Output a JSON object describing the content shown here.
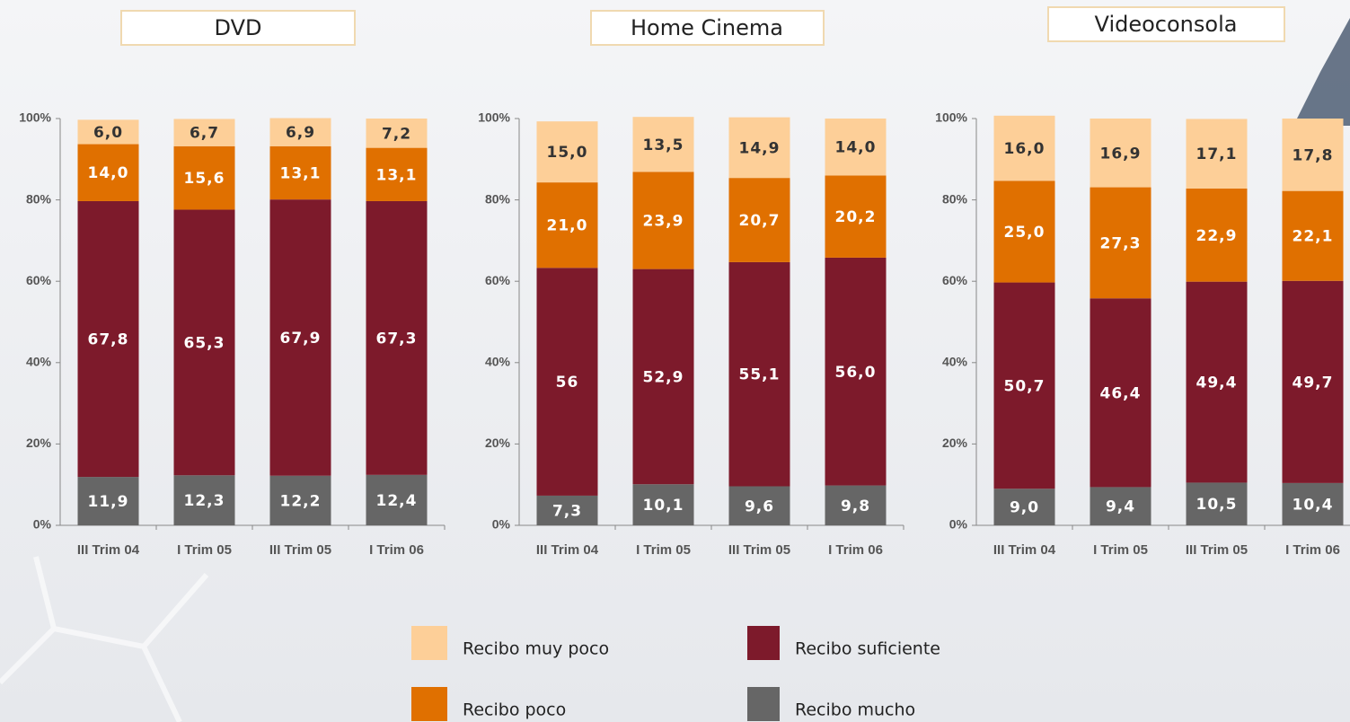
{
  "chart_data": [
    {
      "type": "stacked-bar",
      "title": "DVD",
      "categories": [
        "III Trim 04",
        "I Trim 05",
        "III Trim 05",
        "I Trim 06"
      ],
      "ylim": [
        0,
        100
      ],
      "yticks": [
        {
          "value": 0,
          "label": "0%"
        },
        {
          "value": 20,
          "label": "20%"
        },
        {
          "value": 40,
          "label": "40%"
        },
        {
          "value": 60,
          "label": "60%"
        },
        {
          "value": 80,
          "label": "80%"
        },
        {
          "value": 100,
          "label": "100%"
        }
      ],
      "series": [
        {
          "name": "Recibo mucho",
          "color": "#666666",
          "values": [
            11.9,
            12.3,
            12.2,
            12.4
          ],
          "value_labels": [
            "11,9",
            "12,3",
            "12,2",
            "12,4"
          ]
        },
        {
          "name": "Recibo suficiente",
          "color": "#7d1a2b",
          "values": [
            67.8,
            65.3,
            67.9,
            67.3
          ],
          "value_labels": [
            "67,8",
            "65,3",
            "67,9",
            "67,3"
          ]
        },
        {
          "name": "Recibo poco",
          "color": "#e07000",
          "values": [
            14.0,
            15.6,
            13.1,
            13.1
          ],
          "value_labels": [
            "14,0",
            "15,6",
            "13,1",
            "13,1"
          ]
        },
        {
          "name": "Recibo muy poco",
          "color": "#fdcf98",
          "values": [
            6.0,
            6.7,
            6.9,
            7.2
          ],
          "value_labels": [
            "6,0",
            "6,7",
            "6,9",
            "7,2"
          ]
        }
      ]
    },
    {
      "type": "stacked-bar",
      "title": "Home Cinema",
      "categories": [
        "III Trim 04",
        "I Trim 05",
        "III Trim 05",
        "I Trim 06"
      ],
      "ylim": [
        0,
        100
      ],
      "yticks": [
        {
          "value": 0,
          "label": "0%"
        },
        {
          "value": 20,
          "label": "20%"
        },
        {
          "value": 40,
          "label": "40%"
        },
        {
          "value": 60,
          "label": "60%"
        },
        {
          "value": 80,
          "label": "80%"
        },
        {
          "value": 100,
          "label": "100%"
        }
      ],
      "series": [
        {
          "name": "Recibo mucho",
          "color": "#666666",
          "values": [
            7.3,
            10.1,
            9.6,
            9.8
          ],
          "value_labels": [
            "7,3",
            "10,1",
            "9,6",
            "9,8"
          ]
        },
        {
          "name": "Recibo suficiente",
          "color": "#7d1a2b",
          "values": [
            56,
            52.9,
            55.1,
            56.0
          ],
          "value_labels": [
            "56",
            "52,9",
            "55,1",
            "56,0"
          ]
        },
        {
          "name": "Recibo poco",
          "color": "#e07000",
          "values": [
            21.0,
            23.9,
            20.7,
            20.2
          ],
          "value_labels": [
            "21,0",
            "23,9",
            "20,7",
            "20,2"
          ]
        },
        {
          "name": "Recibo muy poco",
          "color": "#fdcf98",
          "values": [
            15.0,
            13.5,
            14.9,
            14.0
          ],
          "value_labels": [
            "15,0",
            "13,5",
            "14,9",
            "14,0"
          ]
        }
      ]
    },
    {
      "type": "stacked-bar",
      "title": "Videoconsola",
      "categories": [
        "III Trim 04",
        "I Trim 05",
        "III Trim 05",
        "I Trim 06"
      ],
      "ylim": [
        0,
        100
      ],
      "yticks": [
        {
          "value": 0,
          "label": "0%"
        },
        {
          "value": 20,
          "label": "20%"
        },
        {
          "value": 40,
          "label": "40%"
        },
        {
          "value": 60,
          "label": "60%"
        },
        {
          "value": 80,
          "label": "80%"
        },
        {
          "value": 100,
          "label": "100%"
        }
      ],
      "series": [
        {
          "name": "Recibo mucho",
          "color": "#666666",
          "values": [
            9.0,
            9.4,
            10.5,
            10.4
          ],
          "value_labels": [
            "9,0",
            "9,4",
            "10,5",
            "10,4"
          ]
        },
        {
          "name": "Recibo suficiente",
          "color": "#7d1a2b",
          "values": [
            50.7,
            46.4,
            49.4,
            49.7
          ],
          "value_labels": [
            "50,7",
            "46,4",
            "49,4",
            "49,7"
          ]
        },
        {
          "name": "Recibo poco",
          "color": "#e07000",
          "values": [
            25.0,
            27.3,
            22.9,
            22.1
          ],
          "value_labels": [
            "25,0",
            "27,3",
            "22,9",
            "22,1"
          ]
        },
        {
          "name": "Recibo muy poco",
          "color": "#fdcf98",
          "values": [
            16.0,
            16.9,
            17.1,
            17.8
          ],
          "value_labels": [
            "16,0",
            "16,9",
            "17,1",
            "17,8"
          ]
        }
      ]
    }
  ]
}
